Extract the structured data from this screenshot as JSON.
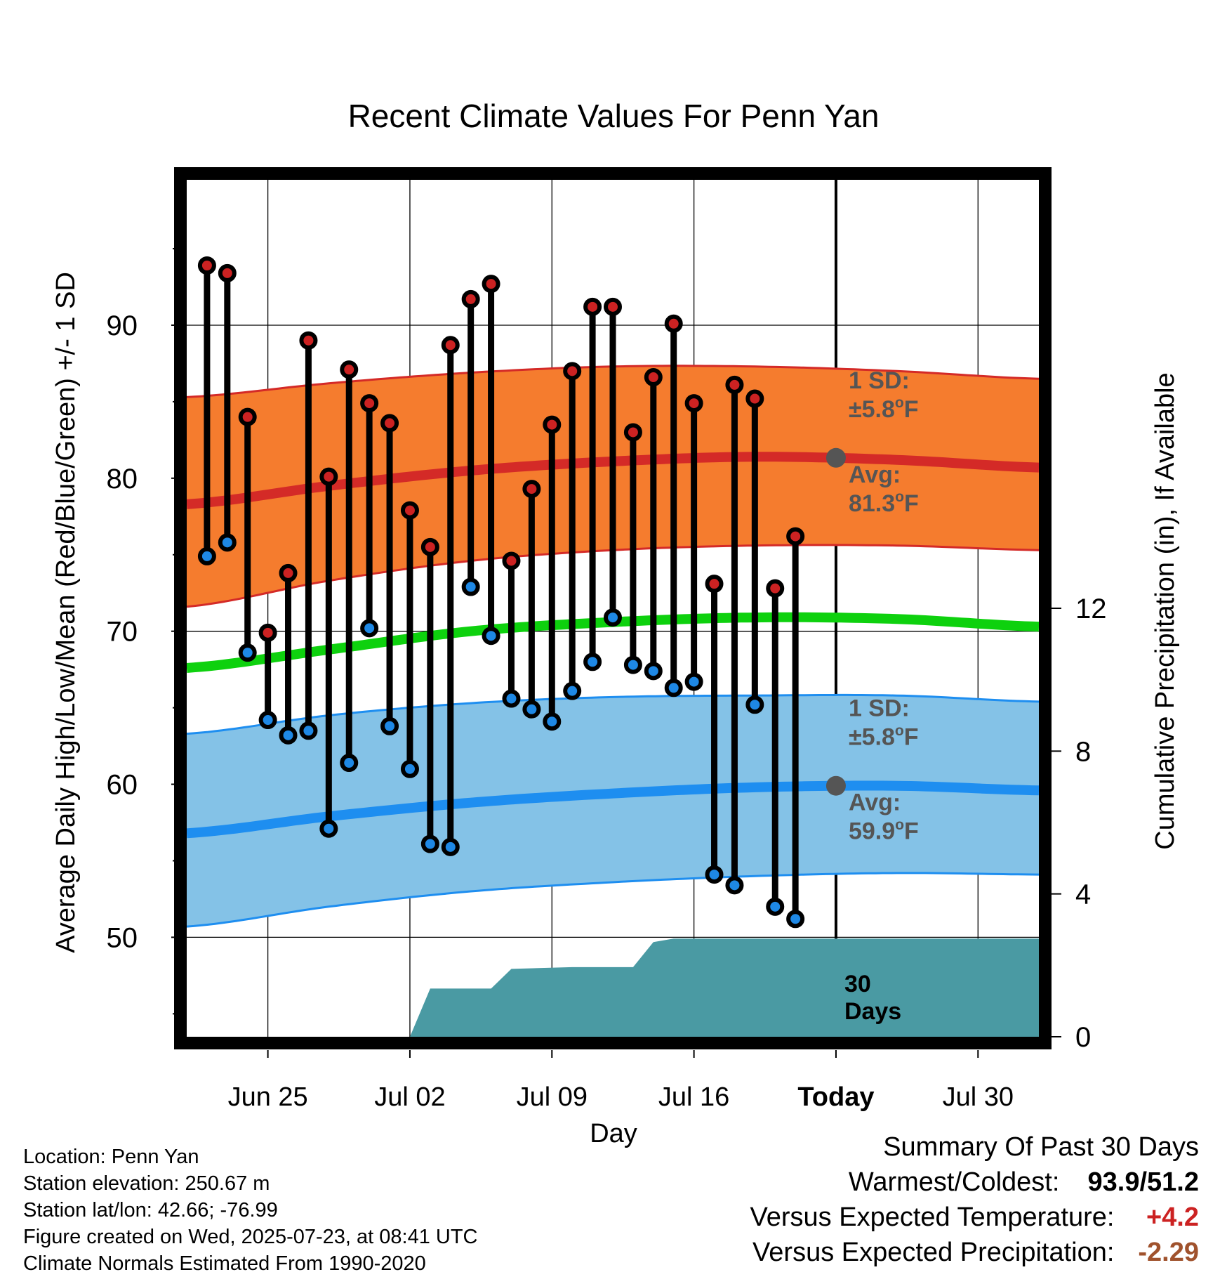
{
  "colors": {
    "high_band": "#f57c2e",
    "high_avg": "#d42a27",
    "low_band": "#84c2e7",
    "low_avg": "#1e8ef0",
    "mean": "#0ed10e",
    "precip": "#4a9aa3",
    "high_marker": "#cc2222",
    "low_marker": "#1e88e5",
    "annotation": "#555555",
    "temp_anomaly": "#cc2222",
    "precip_anomaly": "#a0522d"
  },
  "chart_data": {
    "type": "line",
    "title": "Recent Climate Values For Penn Yan",
    "xlabel": "Day",
    "ylabel": "Average Daily High/Low/Mean (Red/Blue/Green) +/- 1 SD",
    "y2label": "Cumulative Precipitation (in), If Available",
    "xlim": [
      "2025-06-21",
      "2025-08-02"
    ],
    "ylim": [
      43.5,
      99.5
    ],
    "y2lim": [
      0,
      24.0
    ],
    "x_ticks": [
      "Jun 25",
      "Jul 02",
      "Jul 09",
      "Jul 16",
      "Today",
      "Jul 30"
    ],
    "x_tick_dates": [
      "2025-06-25",
      "2025-07-02",
      "2025-07-09",
      "2025-07-16",
      "2025-07-23",
      "2025-07-30"
    ],
    "y_ticks": [
      50,
      60,
      70,
      80,
      90
    ],
    "y2_ticks": [
      0,
      4,
      8,
      12
    ],
    "grid": true,
    "today": "2025-07-23",
    "normals_dates": [
      "2025-06-21",
      "2025-06-28",
      "2025-07-05",
      "2025-07-12",
      "2025-07-19",
      "2025-07-26",
      "2025-08-02"
    ],
    "high_avg": [
      78.3,
      79.5,
      80.5,
      81.1,
      81.4,
      81.2,
      80.7
    ],
    "high_plus_sd": [
      85.3,
      86.2,
      86.9,
      87.3,
      87.3,
      87.0,
      86.5
    ],
    "high_minus_sd": [
      71.6,
      73.3,
      74.6,
      75.3,
      75.6,
      75.6,
      75.3
    ],
    "mean_avg": [
      67.6,
      68.8,
      70.0,
      70.6,
      70.9,
      70.8,
      70.3
    ],
    "low_avg": [
      56.8,
      57.9,
      58.8,
      59.4,
      59.8,
      59.9,
      59.6
    ],
    "low_plus_sd": [
      63.3,
      64.5,
      65.3,
      65.7,
      65.8,
      65.8,
      65.4
    ],
    "low_minus_sd": [
      50.7,
      52.0,
      53.0,
      53.6,
      54.0,
      54.2,
      54.1
    ],
    "series": [
      {
        "name": "High",
        "dates": [
          "2025-06-22",
          "2025-06-23",
          "2025-06-24",
          "2025-06-25",
          "2025-06-26",
          "2025-06-27",
          "2025-06-28",
          "2025-06-29",
          "2025-06-30",
          "2025-07-01",
          "2025-07-02",
          "2025-07-03",
          "2025-07-04",
          "2025-07-05",
          "2025-07-06",
          "2025-07-07",
          "2025-07-08",
          "2025-07-09",
          "2025-07-10",
          "2025-07-11",
          "2025-07-12",
          "2025-07-13",
          "2025-07-14",
          "2025-07-15",
          "2025-07-16",
          "2025-07-17",
          "2025-07-18",
          "2025-07-19",
          "2025-07-20",
          "2025-07-21",
          "2025-07-22"
        ],
        "values": [
          93.9,
          93.4,
          84.0,
          69.9,
          73.8,
          89.0,
          80.1,
          87.1,
          84.9,
          83.6,
          77.9,
          75.5,
          88.7,
          91.7,
          92.7,
          74.6,
          79.3,
          83.5,
          87.0,
          91.2,
          91.2,
          83.0,
          86.6,
          90.1,
          84.9,
          73.1,
          86.1,
          85.2,
          72.8,
          76.2,
          null
        ]
      },
      {
        "name": "Low",
        "dates": [
          "2025-06-22",
          "2025-06-23",
          "2025-06-24",
          "2025-06-25",
          "2025-06-26",
          "2025-06-27",
          "2025-06-28",
          "2025-06-29",
          "2025-06-30",
          "2025-07-01",
          "2025-07-02",
          "2025-07-03",
          "2025-07-04",
          "2025-07-05",
          "2025-07-06",
          "2025-07-07",
          "2025-07-08",
          "2025-07-09",
          "2025-07-10",
          "2025-07-11",
          "2025-07-12",
          "2025-07-13",
          "2025-07-14",
          "2025-07-15",
          "2025-07-16",
          "2025-07-17",
          "2025-07-18",
          "2025-07-19",
          "2025-07-20",
          "2025-07-21",
          "2025-07-22"
        ],
        "values": [
          74.9,
          75.8,
          68.6,
          64.2,
          63.2,
          63.5,
          57.1,
          61.4,
          70.2,
          63.8,
          61.0,
          56.1,
          55.9,
          72.9,
          69.7,
          65.6,
          64.9,
          64.1,
          66.1,
          68.0,
          70.9,
          67.8,
          67.4,
          66.3,
          66.7,
          54.1,
          53.4,
          65.2,
          52.0,
          51.2,
          null
        ]
      }
    ],
    "precip": {
      "dates": [
        "2025-07-02",
        "2025-07-03",
        "2025-07-06",
        "2025-07-07",
        "2025-07-10",
        "2025-07-13",
        "2025-07-14",
        "2025-07-15",
        "2025-07-23",
        "2025-08-02"
      ],
      "values": [
        0.0,
        1.35,
        1.35,
        1.9,
        1.95,
        1.95,
        2.65,
        2.75,
        2.75,
        2.75
      ]
    }
  },
  "annotations": {
    "high_sd_label": "1 SD:",
    "high_sd_value": "±5.8",
    "high_avg_label": "Avg:",
    "high_avg_value": "81.3",
    "low_sd_label": "1 SD:",
    "low_sd_value": "±5.8",
    "low_avg_label": "Avg:",
    "low_avg_value": "59.9",
    "degree_symbol": "o",
    "unit": "F",
    "days_number": "30",
    "days_word": "Days"
  },
  "footer": {
    "location": "Location: Penn Yan",
    "elevation": "Station elevation: 250.67 m",
    "latlon": "Station lat/lon: 42.66; -76.99",
    "created": "Figure created on Wed, 2025-07-23, at 08:41 UTC",
    "normals": "Climate Normals Estimated From 1990-2020"
  },
  "summary": {
    "title": "Summary Of Past 30 Days",
    "warm_cold_label": "Warmest/Coldest:",
    "warm_cold_value": "93.9/51.2",
    "temp_label": "Versus Expected Temperature:",
    "temp_value": "+4.2",
    "precip_label": "Versus Expected Precipitation:",
    "precip_value": "-2.29"
  }
}
